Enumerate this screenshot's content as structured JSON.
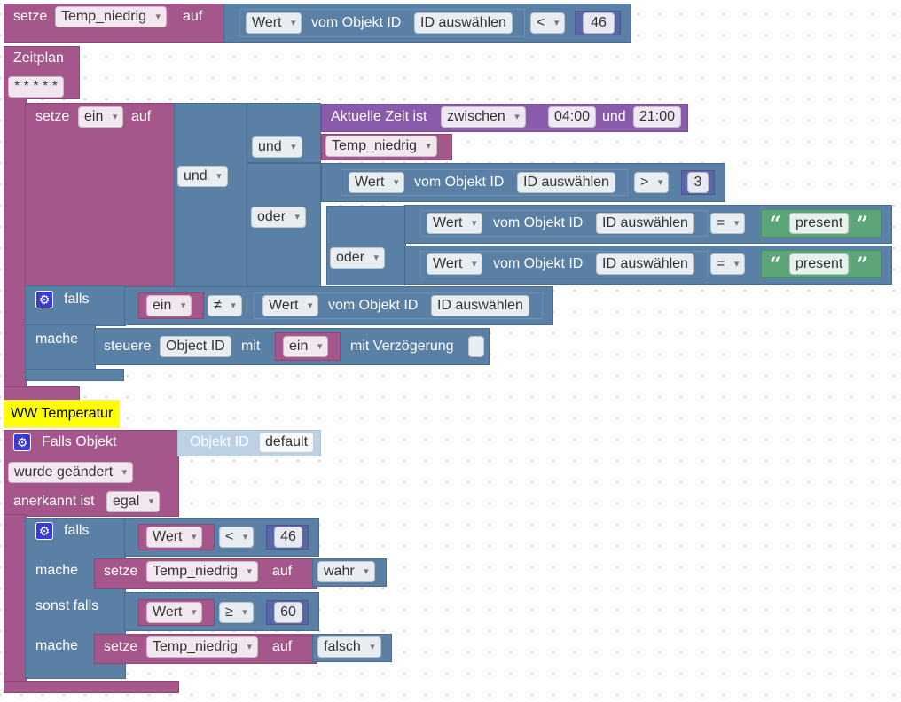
{
  "top_set": {
    "setze": "setze",
    "var": "Temp_niedrig",
    "auf": "auf",
    "cmp": {
      "wert": "Wert",
      "vom_objekt": "vom Objekt ID",
      "id": "ID auswählen",
      "op": "<",
      "num": "46"
    }
  },
  "zeitplan": {
    "label": "Zeitplan",
    "cron": "* * * * *",
    "setze": "setze",
    "var": "ein",
    "auf": "auf",
    "und_outer": "und",
    "und_inner": "und",
    "oder": "oder",
    "oder2": "oder",
    "time": {
      "label": "Aktuelle Zeit ist",
      "mode": "zwischen",
      "from": "04:00",
      "and": "und",
      "to": "21:00"
    },
    "temp_var": "Temp_niedrig",
    "cmp3": {
      "wert": "Wert",
      "vom_objekt": "vom Objekt ID",
      "id": "ID auswählen",
      "op": ">",
      "num": "3"
    },
    "present1": {
      "wert": "Wert",
      "vom_objekt": "vom Objekt ID",
      "id": "ID auswählen",
      "op": "=",
      "text": "present",
      "open_quote": "“",
      "close_quote": "”"
    },
    "present2": {
      "wert": "Wert",
      "vom_objekt": "vom Objekt ID",
      "id": "ID auswählen",
      "op": "=",
      "text": "present",
      "open_quote": "“",
      "close_quote": "”"
    },
    "falls": "falls",
    "mache": "mache",
    "ifcond": {
      "var": "ein",
      "op": "≠",
      "wert": "Wert",
      "vom_objekt": "vom Objekt ID",
      "id": "ID auswählen"
    },
    "steuere": {
      "label": "steuere",
      "obj": "Object ID",
      "mit": "mit",
      "var": "ein",
      "delay": "mit Verzögerung"
    }
  },
  "trigger": {
    "comment": "WW Temperatur",
    "falls_objekt": "Falls Objekt",
    "objekt_id": "Objekt ID",
    "default": "default",
    "changed": "wurde geändert",
    "anerkannt": "anerkannt ist",
    "egal": "egal",
    "falls": "falls",
    "mache": "mache",
    "sonst_falls": "sonst falls",
    "mache2": "mache",
    "cond1": {
      "wert": "Wert",
      "op": "<",
      "num": "46"
    },
    "set1": {
      "setze": "setze",
      "var": "Temp_niedrig",
      "auf": "auf",
      "val": "wahr"
    },
    "cond2": {
      "wert": "Wert",
      "op": "≥",
      "num": "60"
    },
    "set2": {
      "setze": "setze",
      "var": "Temp_niedrig",
      "auf": "auf",
      "val": "falsch"
    }
  },
  "icons": {
    "gear": "gear-icon",
    "dropdown": "chevron-down-icon"
  },
  "colors": {
    "variable": "#a5568a",
    "logic": "#5b80a5",
    "time": "#8a5bab",
    "text": "#5ba578",
    "comment": "#ffff00"
  }
}
